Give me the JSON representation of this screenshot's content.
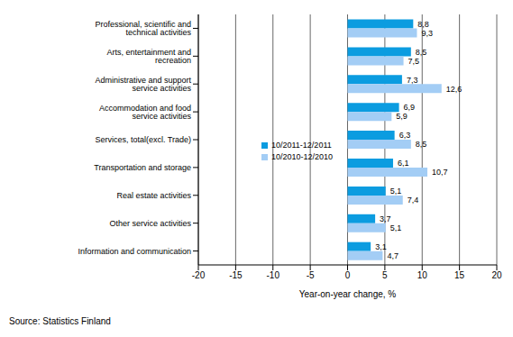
{
  "chart_data": {
    "type": "bar",
    "orientation": "horizontal",
    "categories": [
      "Professional, scientific and technical activities",
      "Arts, entertainment and recreation",
      "Administrative and support service activities",
      "Accommodation and food service activities",
      "Services, total(excl. Trade)",
      "Transportation and storage",
      "Real estate activities",
      "Other service activities",
      "Information and communication"
    ],
    "series": [
      {
        "name": "10/2011-12/2011",
        "color": "#0b9ce0",
        "values": [
          8.8,
          8.5,
          7.3,
          6.9,
          6.3,
          6.1,
          5.1,
          3.7,
          3.1
        ],
        "value_labels": [
          "8,8",
          "8,5",
          "7,3",
          "6,9",
          "6,3",
          "6,1",
          "5,1",
          "3,7",
          "3,1"
        ]
      },
      {
        "name": "10/2010-12/2010",
        "color": "#a3cdf5",
        "values": [
          9.3,
          7.5,
          12.6,
          5.9,
          8.5,
          10.7,
          7.4,
          5.1,
          4.7
        ],
        "value_labels": [
          "9,3",
          "7,5",
          "12,6",
          "5,9",
          "8,5",
          "10,7",
          "7,4",
          "5,1",
          "4,7"
        ]
      }
    ],
    "xlabel": "Year-on-year change, %",
    "xlim": [
      -20,
      20
    ],
    "xticks": [
      -20,
      -15,
      -10,
      -5,
      0,
      5,
      10,
      15,
      20
    ],
    "grid": true,
    "data_labels": true,
    "annotations": [
      "Source: Statistics Finland"
    ]
  }
}
